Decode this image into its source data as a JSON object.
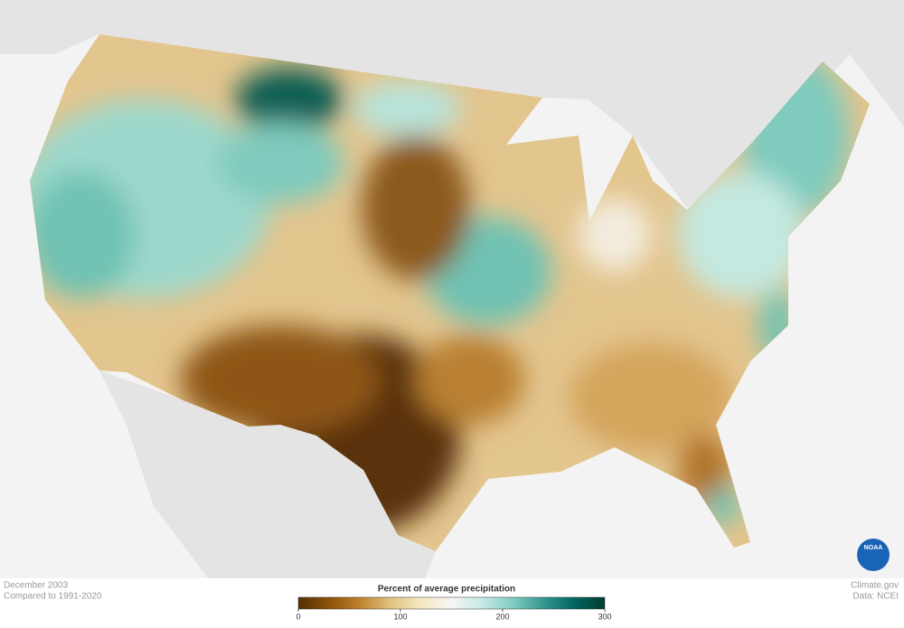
{
  "caption": {
    "date": "December 2003",
    "baseline": "Compared to 1991-2020"
  },
  "legend": {
    "title": "Percent of average precipitation",
    "range": [
      0,
      300
    ],
    "ticks": [
      0,
      100,
      200,
      300
    ],
    "colors": [
      "#543005",
      "#8c510a",
      "#bf812d",
      "#dfc27d",
      "#f6e8c3",
      "#f5f5f5",
      "#c7eae5",
      "#80cdc1",
      "#35978f",
      "#01665e",
      "#003c30"
    ]
  },
  "credits": {
    "site": "Climate.gov",
    "source": "Data: NCEI"
  },
  "logo": "NOAA"
}
